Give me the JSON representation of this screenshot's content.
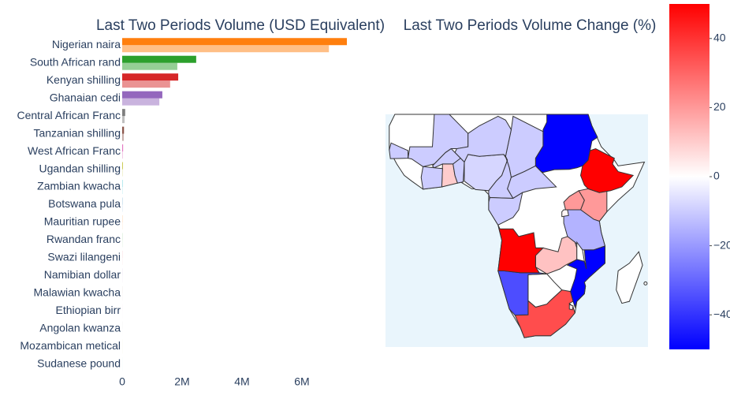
{
  "chart_data": [
    {
      "type": "hbar",
      "title": "Last Two Periods Volume (USD Equivalent)",
      "categories": [
        "Nigerian naira",
        "South African rand",
        "Kenyan shilling",
        "Ghanaian cedi",
        "Central African Franc",
        "Tanzanian shilling",
        "West African Franc",
        "Ugandan shilling",
        "Zambian kwacha",
        "Botswana pula",
        "Mauritian rupee",
        "Rwandan franc",
        "Swazi lilangeni",
        "Namibian dollar",
        "Malawian kwacha",
        "Ethiopian birr",
        "Angolan kwanza",
        "Mozambican metical",
        "Sudanese pound"
      ],
      "colors": [
        "#ff7f0e",
        "#2ca02c",
        "#d62728",
        "#9467bd",
        "#7f7f7f",
        "#8c564b",
        "#e377c2",
        "#bcbd22",
        "#17becf",
        "#1f77b4",
        "#ff7f0e",
        "#2ca02c",
        "#d62728",
        "#9467bd",
        "#8c564b",
        "#e377c2",
        "#7f7f7f",
        "#bcbd22",
        "#17becf"
      ],
      "series": [
        {
          "values": [
            7500000,
            2470000,
            1870000,
            1340000,
            100000,
            60000,
            30000,
            20000,
            8000,
            5000,
            4000,
            3000,
            2000,
            2000,
            1500,
            1000,
            1000,
            800,
            500
          ],
          "opacity": 1
        },
        {
          "values": [
            6900000,
            1840000,
            1600000,
            1240000,
            80000,
            50000,
            20000,
            10000,
            7000,
            5000,
            4000,
            3000,
            2000,
            2000,
            1500,
            700,
            600,
            1500,
            1000
          ],
          "opacity": 0.5
        }
      ],
      "xlim": [
        0,
        7500000
      ],
      "xticks": [
        0,
        {
          "value": 2000000,
          "label": "2M"
        },
        {
          "value": 4000000,
          "label": "4M"
        },
        {
          "value": 6000000,
          "label": "6M"
        }
      ]
    },
    {
      "type": "choropleth",
      "title": "Last Two Periods Volume Change (%)",
      "values": [
        -8,
        35,
        20,
        10,
        -10,
        -15,
        -10,
        20,
        12,
        0,
        0,
        2,
        5,
        -35,
        0,
        50,
        50,
        -50,
        -50
      ],
      "zlim": [
        -50,
        50
      ],
      "colorscale": [
        "#0000ff",
        "#ffffff",
        "#ff0000"
      ],
      "zticks": [
        40,
        20,
        0,
        {
          "value": -20,
          "label": "−20"
        },
        {
          "value": -40,
          "label": "−40"
        }
      ]
    }
  ]
}
